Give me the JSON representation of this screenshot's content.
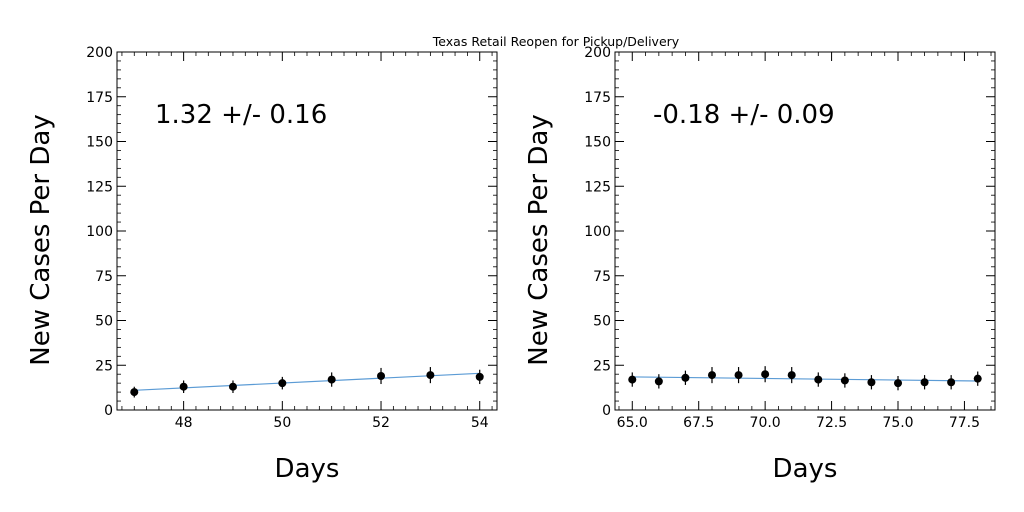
{
  "title": "Texas Retail Reopen for Pickup/Delivery",
  "colors": {
    "fit_line": "#5b9bd5",
    "points": "#000000",
    "axes": "#000000"
  },
  "chart_data": [
    {
      "type": "scatter",
      "annotation": "1.32 +/- 0.16",
      "xlabel": "Days",
      "ylabel": "New Cases Per Day",
      "xlim": [
        46.65,
        54.35
      ],
      "ylim": [
        0,
        200
      ],
      "x_ticks": [
        48,
        50,
        52,
        54
      ],
      "x_tick_labels": [
        "48",
        "50",
        "52",
        "54"
      ],
      "x_minor_step": 0.25,
      "y_ticks": [
        0,
        25,
        50,
        75,
        100,
        125,
        150,
        175,
        200
      ],
      "y_tick_labels": [
        "0",
        "25",
        "50",
        "75",
        "100",
        "125",
        "150",
        "175",
        "200"
      ],
      "y_minor_step": 5,
      "grid": false,
      "points": {
        "x": [
          47,
          48,
          49,
          50,
          51,
          52,
          53,
          54
        ],
        "y": [
          10,
          13,
          13,
          15,
          17,
          19,
          19.5,
          18.5
        ],
        "yerr": [
          3,
          3.5,
          3.5,
          3.5,
          4,
          4.5,
          4.5,
          4
        ]
      },
      "fit": {
        "x": [
          47,
          54
        ],
        "y": [
          11,
          20.5
        ]
      }
    },
    {
      "type": "scatter",
      "annotation": "-0.18 +/- 0.09",
      "xlabel": "Days",
      "ylabel": "New Cases Per Day",
      "xlim": [
        64.35,
        78.65
      ],
      "ylim": [
        0,
        200
      ],
      "x_ticks": [
        65,
        67.5,
        70,
        72.5,
        75,
        77.5
      ],
      "x_tick_labels": [
        "65.0",
        "67.5",
        "70.0",
        "72.5",
        "75.0",
        "77.5"
      ],
      "x_minor_step": 0.5,
      "y_ticks": [
        0,
        25,
        50,
        75,
        100,
        125,
        150,
        175,
        200
      ],
      "y_tick_labels": [
        "0",
        "25",
        "50",
        "75",
        "100",
        "125",
        "150",
        "175",
        "200"
      ],
      "y_minor_step": 5,
      "grid": false,
      "points": {
        "x": [
          65,
          66,
          67,
          68,
          69,
          70,
          71,
          72,
          73,
          74,
          75,
          76,
          77,
          78
        ],
        "y": [
          17,
          16,
          18,
          19.5,
          19.5,
          20,
          19.5,
          17,
          16.5,
          15.5,
          15,
          15.5,
          15.5,
          17.5
        ],
        "yerr": [
          4,
          4,
          4,
          4.5,
          4.5,
          4.5,
          4.5,
          4,
          4,
          4,
          4,
          4,
          4,
          4
        ]
      },
      "fit": {
        "x": [
          65,
          78
        ],
        "y": [
          18.5,
          16.2
        ]
      }
    }
  ]
}
